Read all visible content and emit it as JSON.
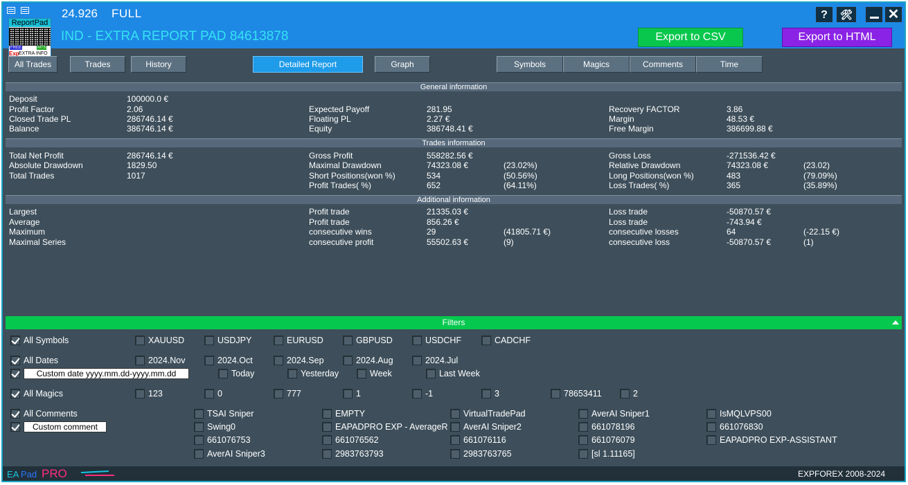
{
  "window": {
    "version": "24.926",
    "mode": "FULL",
    "title": "IND - EXTRA REPORT PAD 84613878"
  },
  "logo": {
    "top_text": "ReportPad",
    "free": "FREE",
    "mt5": "MT5",
    "exp": "Exp",
    "extra": "EXTRA INFO"
  },
  "title_buttons": {
    "help": "?",
    "tools": "🛠",
    "close": "✕"
  },
  "export": {
    "csv": "Export to CSV",
    "html": "Export to HTML"
  },
  "nav": {
    "all_trades": "All Trades",
    "trades": "Trades",
    "history": "History",
    "detailed_report": "Detailed Report",
    "graph": "Graph",
    "symbols": "Symbols",
    "magics": "Magics",
    "comments": "Comments",
    "time": "Time"
  },
  "report": {
    "general": {
      "header": "General information",
      "rows": [
        [
          "Deposit",
          "100000.0 €",
          "",
          "",
          "",
          "",
          "",
          ""
        ],
        [
          "Profit Factor",
          "2.06",
          "Expected Payoff",
          "281.95",
          "",
          "Recovery FACTOR",
          "3.86",
          ""
        ],
        [
          "Closed Trade PL",
          "286746.14 €",
          "Floating PL",
          "2.27 €",
          "",
          "Margin",
          "48.53 €",
          ""
        ],
        [
          "Balance",
          "386746.14 €",
          "Equity",
          "386748.41 €",
          "",
          "Free Margin",
          "386699.88 €",
          ""
        ]
      ]
    },
    "trades": {
      "header": "Trades information",
      "rows": [
        [
          "Total Net Profit",
          "286746.14 €",
          "Gross Profit",
          "558282.56 €",
          "",
          "Gross Loss",
          "-271536.42 €",
          ""
        ],
        [
          "Absolute Drawdown",
          "1829.50",
          "Maximal Drawdown",
          "74323.08 €",
          "(23.02%)",
          "Relative Drawdown",
          "74323.08 €",
          "(23.02)"
        ],
        [
          "Total Trades",
          "1017",
          "Short Positions(won %)",
          "534",
          "(50.56%)",
          "Long Positions(won %)",
          "483",
          "(79.09%)"
        ],
        [
          "",
          "",
          "Profit Trades( %)",
          "652",
          "(64.11%)",
          "Loss Trades( %)",
          "365",
          "(35.89%)"
        ]
      ]
    },
    "additional": {
      "header": "Additional information",
      "rows": [
        [
          "Largest",
          "",
          "Profit trade",
          "21335.03 €",
          "",
          "Loss trade",
          "-50870.57 €",
          ""
        ],
        [
          "Average",
          "",
          "Profit trade",
          "856.26 €",
          "",
          "Loss trade",
          "-743.94 €",
          ""
        ],
        [
          "Maximum",
          "",
          "consecutive wins",
          "29",
          "(41805.71 €)",
          "consecutive losses",
          "64",
          "(-22.15 €)"
        ],
        [
          "Maximal Series",
          "",
          "consecutive profit",
          "55502.63 €",
          "(9)",
          "consecutive loss",
          "-50870.57 €",
          "(1)"
        ]
      ]
    }
  },
  "filters": {
    "header": "Filters",
    "symbols": {
      "all": "All Symbols",
      "items": [
        "XAUUSD",
        "USDJPY",
        "EURUSD",
        "GBPUSD",
        "USDCHF",
        "CADCHF"
      ]
    },
    "dates": {
      "all": "All Dates",
      "months": [
        "2024.Nov",
        "2024.Oct",
        "2024.Sep",
        "2024.Aug",
        "2024.Jul"
      ],
      "custom_placeholder": "Custom date yyyy.mm.dd-yyyy.mm.dd",
      "periods": [
        "Today",
        "Yesterday",
        "Week",
        "Last Week"
      ]
    },
    "magics": {
      "all": "All Magics",
      "items": [
        "123",
        "0",
        "777",
        "1",
        "-1",
        "3",
        "78653411",
        "2"
      ]
    },
    "comments": {
      "all": "All Comments",
      "custom_placeholder": "Custom comment",
      "columns": [
        [
          "TSAI Sniper",
          "Swing0",
          "661076753",
          "AverAI Sniper3"
        ],
        [
          "EMPTY",
          "EAPADPRO EXP - AverageR",
          "661076562",
          "2983763793"
        ],
        [
          "VirtualTradePad",
          "AverAI Sniper2",
          "661076116",
          "2983763765"
        ],
        [
          "AverAI Sniper1",
          "661078196",
          "661076079",
          "[sl 1.11165]"
        ],
        [
          "IsMQLVPS00",
          "661076830",
          "EAPADPRO EXP-ASSISTANT"
        ]
      ]
    }
  },
  "statusbar": {
    "ea": "EA",
    "pad": "Pad",
    "pro": "PRO",
    "copyright": "EXPFOREX 2008-2024"
  },
  "colors": {
    "titlebar": "#1e88e5",
    "panel": "#3e4f5b",
    "title_text": "#35e2f3",
    "export_csv": "#09c74d",
    "export_html": "#8a23e6",
    "active_tab": "#1e9be9",
    "filters_bar": "#05c94e",
    "pro": "#ff2e7e"
  },
  "icons": [
    "window-menu-icon",
    "window-pin-icon",
    "help-icon",
    "tools-icon",
    "minimize-icon",
    "close-icon",
    "collapse-arrow-icon",
    "checkbox-icon"
  ]
}
